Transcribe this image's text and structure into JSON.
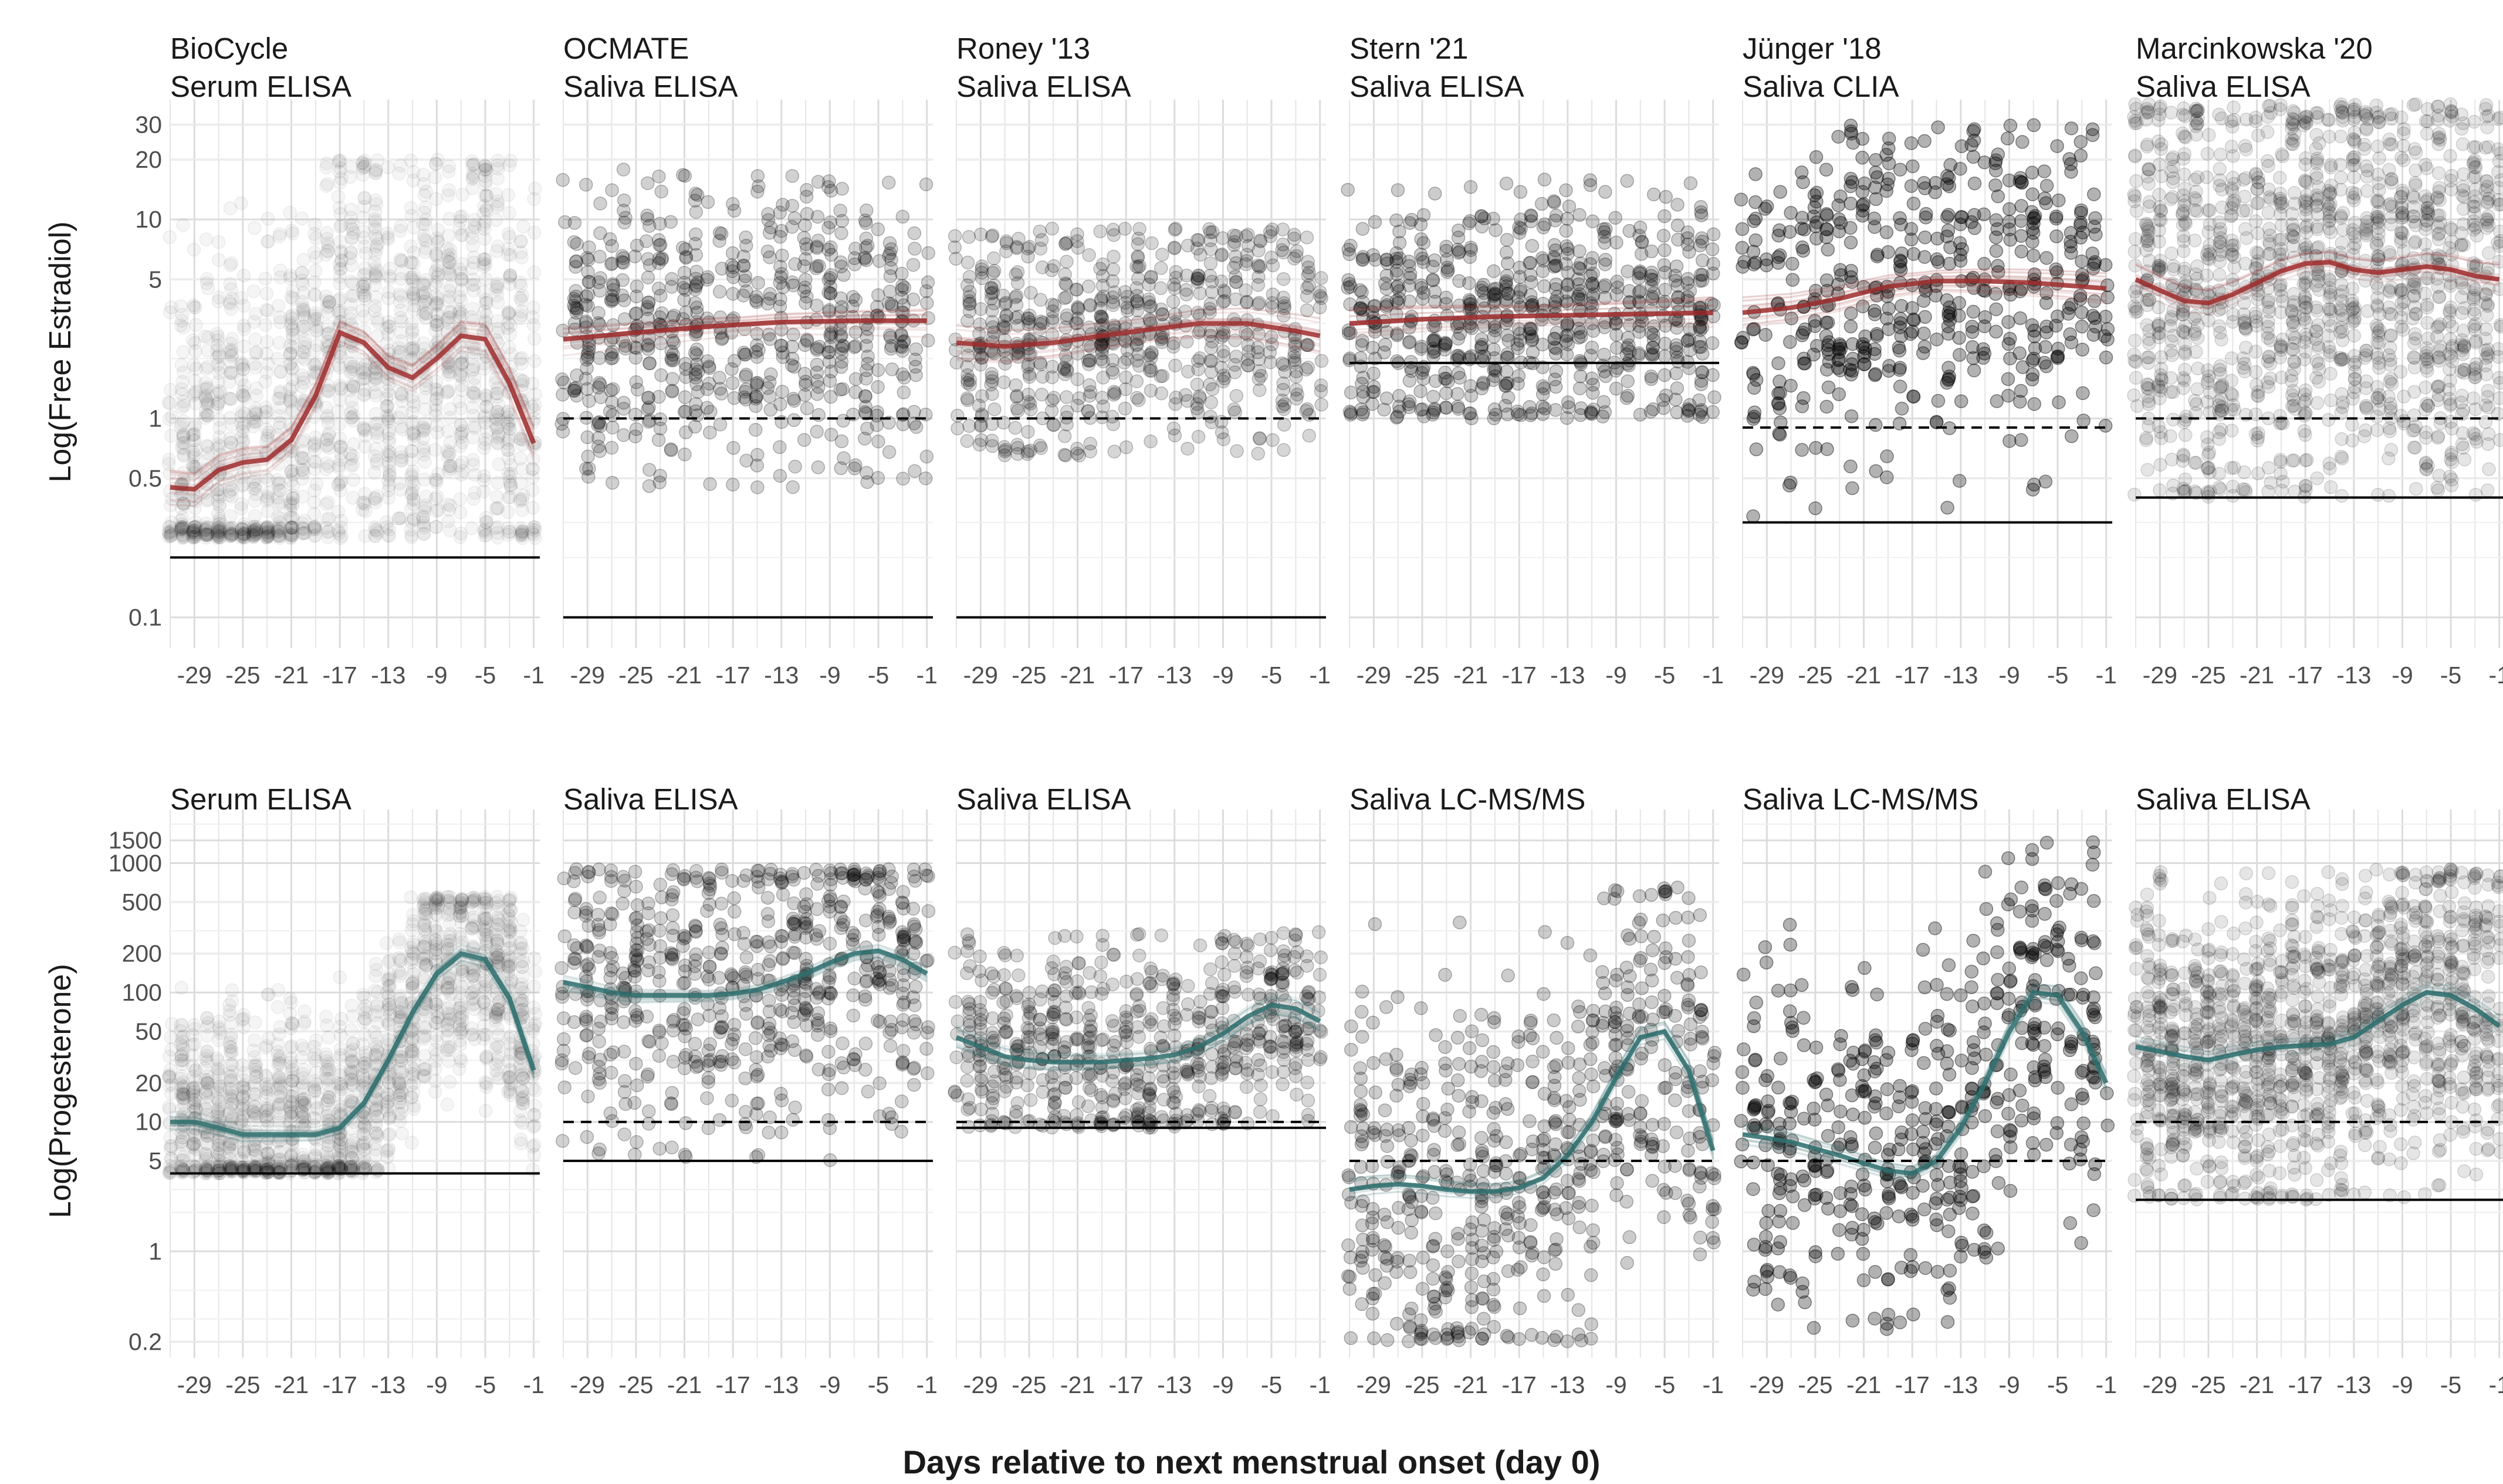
{
  "figure": {
    "xlabel": "Days relative to next menstrual onset (day 0)",
    "colors": {
      "estradiol": "#9e2a2b",
      "progesterone": "#2e6e6e",
      "points": "#000000",
      "grid": "#e5e5e5"
    }
  },
  "chart_data": [
    {
      "type": "scatter",
      "row": "estradiol",
      "ylabel": "Log(Free Estradiol)",
      "yscale": "log",
      "ylim": [
        0.07,
        40
      ],
      "xlim": [
        -31,
        -0.5
      ],
      "x_ticks": [
        -29,
        -25,
        -21,
        -17,
        -13,
        -9,
        -5,
        -1
      ],
      "x_tick_labels": [
        "-29",
        "-25",
        "-21",
        "-17",
        "-13",
        "-9",
        "-5",
        "-1"
      ],
      "y_ticks": [
        0.1,
        0.5,
        1,
        5,
        10,
        20,
        30
      ],
      "y_tick_labels": [
        "0.1",
        "0.5",
        "1",
        "5",
        "10",
        "20",
        "30"
      ],
      "grid": true,
      "panels": [
        {
          "title": [
            "BioCycle",
            "Serum ELISA"
          ],
          "lod_solid": 0.2,
          "lod_dashed": null,
          "fit": {
            "x": [
              -31,
              -29,
              -27,
              -25,
              -23,
              -21,
              -19,
              -17,
              -15,
              -13,
              -11,
              -9,
              -7,
              -5,
              -3,
              -1
            ],
            "y": [
              0.45,
              0.44,
              0.55,
              0.6,
              0.62,
              0.78,
              1.3,
              2.7,
              2.4,
              1.8,
              1.6,
              2.0,
              2.6,
              2.5,
              1.5,
              0.75
            ]
          },
          "points": {
            "n": 1800,
            "alpha": 0.04,
            "spread": 0.55,
            "min": 0.25,
            "max": 20
          }
        },
        {
          "title": [
            "OCMATE",
            "Saliva ELISA"
          ],
          "lod_solid": 0.1,
          "lod_dashed": 1,
          "fit": {
            "x": [
              -31,
              -25,
              -19,
              -13,
              -7,
              -1
            ],
            "y": [
              2.5,
              2.7,
              2.9,
              3.05,
              3.1,
              3.1
            ]
          },
          "points": {
            "n": 650,
            "alpha": 0.18,
            "spread": 0.35,
            "min": 0.45,
            "max": 18
          }
        },
        {
          "title": [
            "Roney '13",
            "Saliva ELISA"
          ],
          "lod_solid": 0.1,
          "lod_dashed": 1,
          "fit": {
            "x": [
              -31,
              -27,
              -23,
              -19,
              -15,
              -11,
              -7,
              -3,
              -1
            ],
            "y": [
              2.4,
              2.3,
              2.4,
              2.6,
              2.8,
              3.0,
              3.0,
              2.75,
              2.6
            ]
          },
          "points": {
            "n": 650,
            "alpha": 0.16,
            "spread": 0.32,
            "min": 0.65,
            "max": 9
          }
        },
        {
          "title": [
            "Stern '21",
            "Saliva ELISA"
          ],
          "lod_solid": 1.9,
          "lod_dashed": null,
          "fit": {
            "x": [
              -31,
              -25,
              -19,
              -13,
              -7,
              -1
            ],
            "y": [
              3.0,
              3.15,
              3.25,
              3.3,
              3.35,
              3.4
            ]
          },
          "points": {
            "n": 700,
            "alpha": 0.2,
            "spread": 0.3,
            "min": 1.0,
            "max": 16
          }
        },
        {
          "title": [
            "Jünger '18",
            "Saliva CLIA"
          ],
          "lod_solid": 0.3,
          "lod_dashed": 0.9,
          "fit": {
            "x": [
              -31,
              -27,
              -23,
              -19,
              -15,
              -11,
              -7,
              -3,
              -1
            ],
            "y": [
              3.4,
              3.6,
              4.0,
              4.6,
              4.9,
              4.9,
              4.8,
              4.6,
              4.5
            ]
          },
          "points": {
            "n": 520,
            "alpha": 0.3,
            "spread": 0.42,
            "min": 0.3,
            "max": 30
          }
        },
        {
          "title": [
            "Marcinkowska '20",
            "Saliva ELISA"
          ],
          "lod_solid": 0.4,
          "lod_dashed": 1,
          "fit": {
            "x": [
              -31,
              -29,
              -27,
              -25,
              -23,
              -21,
              -19,
              -17,
              -15,
              -13,
              -11,
              -9,
              -7,
              -5,
              -3,
              -1
            ],
            "y": [
              5.0,
              4.4,
              3.9,
              3.8,
              4.2,
              4.8,
              5.5,
              6.0,
              6.1,
              5.6,
              5.4,
              5.6,
              5.8,
              5.6,
              5.2,
              5.0
            ]
          },
          "points": {
            "n": 1400,
            "alpha": 0.1,
            "spread": 0.55,
            "min": 0.4,
            "max": 38
          }
        }
      ]
    },
    {
      "type": "scatter",
      "row": "progesterone",
      "ylabel": "Log(Progesterone)",
      "yscale": "log",
      "ylim": [
        0.15,
        2600
      ],
      "xlim": [
        -31,
        -0.5
      ],
      "x_ticks": [
        -29,
        -25,
        -21,
        -17,
        -13,
        -9,
        -5,
        -1
      ],
      "x_tick_labels": [
        "-29",
        "-25",
        "-21",
        "-17",
        "-13",
        "-9",
        "-5",
        "-1"
      ],
      "y_ticks": [
        0.2,
        1,
        5,
        10,
        20,
        50,
        100,
        200,
        500,
        1000,
        1500
      ],
      "y_tick_labels": [
        "0.2",
        "1",
        "5",
        "10",
        "20",
        "50",
        "100",
        "200",
        "500",
        "1000",
        "1500"
      ],
      "grid": true,
      "panels": [
        {
          "title": [
            "Serum ELISA"
          ],
          "lod_solid": 4,
          "lod_dashed": null,
          "fit": {
            "x": [
              -31,
              -29,
              -27,
              -25,
              -23,
              -21,
              -19,
              -17,
              -15,
              -13,
              -11,
              -9,
              -7,
              -5,
              -3,
              -1
            ],
            "y": [
              10,
              10,
              9,
              8,
              8,
              8,
              8,
              9,
              14,
              30,
              70,
              140,
              200,
              180,
              90,
              25
            ]
          },
          "points": {
            "n": 1800,
            "alpha": 0.04,
            "spread": 0.45,
            "min": 4,
            "max": 550
          }
        },
        {
          "title": [
            "Saliva ELISA"
          ],
          "lod_solid": 5,
          "lod_dashed": 10,
          "fit": {
            "x": [
              -31,
              -29,
              -27,
              -25,
              -23,
              -21,
              -19,
              -17,
              -15,
              -13,
              -11,
              -9,
              -7,
              -5,
              -3,
              -1
            ],
            "y": [
              120,
              110,
              100,
              95,
              95,
              95,
              95,
              98,
              105,
              120,
              140,
              170,
              200,
              210,
              180,
              140
            ]
          },
          "points": {
            "n": 650,
            "alpha": 0.18,
            "spread": 0.6,
            "min": 5,
            "max": 900
          }
        },
        {
          "title": [
            "Saliva ELISA"
          ],
          "lod_solid": 9,
          "lod_dashed": 10,
          "fit": {
            "x": [
              -31,
              -29,
              -27,
              -25,
              -23,
              -21,
              -19,
              -17,
              -15,
              -13,
              -11,
              -9,
              -7,
              -5,
              -3,
              -1
            ],
            "y": [
              45,
              38,
              32,
              30,
              29,
              29,
              29,
              30,
              31,
              33,
              38,
              48,
              65,
              80,
              75,
              60
            ]
          },
          "points": {
            "n": 650,
            "alpha": 0.16,
            "spread": 0.4,
            "min": 9,
            "max": 300
          }
        },
        {
          "title": [
            "Saliva LC-MS/MS"
          ],
          "lod_solid": null,
          "lod_dashed": 5,
          "fit": {
            "x": [
              -31,
              -29,
              -27,
              -25,
              -23,
              -21,
              -19,
              -17,
              -15,
              -13,
              -11,
              -9,
              -7,
              -5,
              -3,
              -1
            ],
            "y": [
              3,
              3.2,
              3.3,
              3.2,
              3.0,
              2.9,
              2.9,
              3.1,
              3.7,
              5.5,
              10,
              22,
              45,
              50,
              25,
              6
            ]
          },
          "points": {
            "n": 650,
            "alpha": 0.2,
            "spread": 0.75,
            "min": 0.2,
            "max": 650
          }
        },
        {
          "title": [
            "Saliva LC-MS/MS"
          ],
          "lod_solid": null,
          "lod_dashed": 5,
          "fit": {
            "x": [
              -31,
              -29,
              -27,
              -25,
              -23,
              -21,
              -19,
              -17,
              -15,
              -13,
              -11,
              -9,
              -7,
              -5,
              -3,
              -1
            ],
            "y": [
              8,
              7.5,
              7,
              6.2,
              5.5,
              4.8,
              4.2,
              4.0,
              5.0,
              9,
              20,
              50,
              100,
              95,
              50,
              20
            ]
          },
          "points": {
            "n": 520,
            "alpha": 0.3,
            "spread": 0.7,
            "min": 0.25,
            "max": 1500
          }
        },
        {
          "title": [
            "Saliva ELISA"
          ],
          "lod_solid": 2.5,
          "lod_dashed": 10,
          "fit": {
            "x": [
              -31,
              -29,
              -27,
              -25,
              -23,
              -21,
              -19,
              -17,
              -15,
              -13,
              -11,
              -9,
              -7,
              -5,
              -3,
              -1
            ],
            "y": [
              38,
              35,
              32,
              30,
              33,
              36,
              38,
              39,
              40,
              45,
              60,
              80,
              100,
              95,
              75,
              55
            ]
          },
          "points": {
            "n": 1400,
            "alpha": 0.1,
            "spread": 0.6,
            "min": 2.5,
            "max": 900
          }
        }
      ]
    }
  ]
}
